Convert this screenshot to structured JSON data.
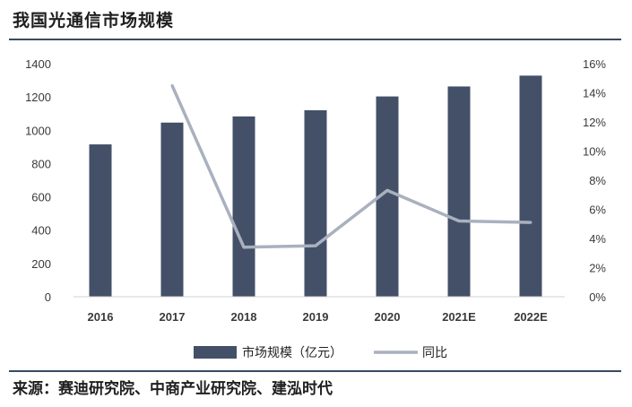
{
  "title": "我国光通信市场规模",
  "source": "来源：赛迪研究院、中商产业研究院、建泓时代",
  "chart_data": {
    "type": "bar",
    "categories": [
      "2016",
      "2017",
      "2018",
      "2019",
      "2020",
      "2021E",
      "2022E"
    ],
    "series": [
      {
        "name": "市场规模（亿元）",
        "type": "bar",
        "axis": "left",
        "values": [
          915,
          1046,
          1083,
          1120,
          1203,
          1263,
          1328
        ]
      },
      {
        "name": "同比",
        "type": "line",
        "axis": "right",
        "values": [
          null,
          14.5,
          3.4,
          3.5,
          7.3,
          5.2,
          5.1
        ]
      }
    ],
    "y_left": {
      "min": 0,
      "max": 1400,
      "ticks": [
        "0",
        "200",
        "400",
        "600",
        "800",
        "1000",
        "1200",
        "1400"
      ]
    },
    "y_right": {
      "min": 0,
      "max": 16,
      "ticks": [
        "0%",
        "2%",
        "4%",
        "6%",
        "8%",
        "10%",
        "12%",
        "14%",
        "16%"
      ]
    },
    "grid": false,
    "legend": "bottom",
    "colors": {
      "bar": "#435068",
      "line": "#a9b1bf"
    }
  }
}
